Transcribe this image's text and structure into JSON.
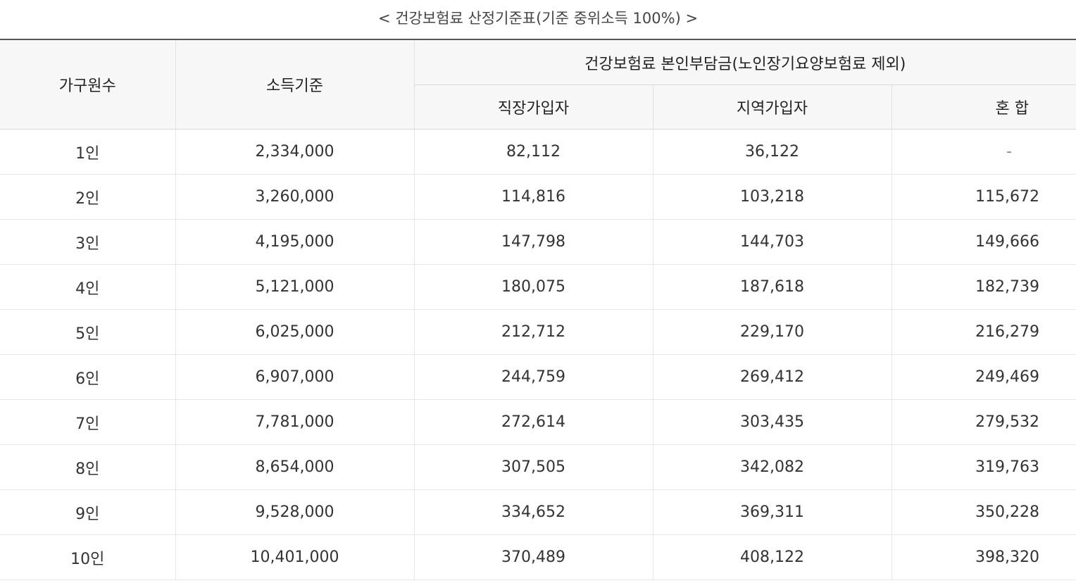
{
  "caption": "< 건강보험료 산정기준표(기준 중위소득 100%) >",
  "headers": {
    "household": "가구원수",
    "income": "소득기준",
    "premium_group": "건강보험료 본인부담금(노인장기요양보험료 제외)",
    "workplace": "직장가입자",
    "regional": "지역가입자",
    "mixed": "혼 합"
  },
  "rows": [
    {
      "household": "1인",
      "income": "2,334,000",
      "workplace": "82,112",
      "regional": "36,122",
      "mixed": "-"
    },
    {
      "household": "2인",
      "income": "3,260,000",
      "workplace": "114,816",
      "regional": "103,218",
      "mixed": "115,672"
    },
    {
      "household": "3인",
      "income": "4,195,000",
      "workplace": "147,798",
      "regional": "144,703",
      "mixed": "149,666"
    },
    {
      "household": "4인",
      "income": "5,121,000",
      "workplace": "180,075",
      "regional": "187,618",
      "mixed": "182,739"
    },
    {
      "household": "5인",
      "income": "6,025,000",
      "workplace": "212,712",
      "regional": "229,170",
      "mixed": "216,279"
    },
    {
      "household": "6인",
      "income": "6,907,000",
      "workplace": "244,759",
      "regional": "269,412",
      "mixed": "249,469"
    },
    {
      "household": "7인",
      "income": "7,781,000",
      "workplace": "272,614",
      "regional": "303,435",
      "mixed": "279,532"
    },
    {
      "household": "8인",
      "income": "8,654,000",
      "workplace": "307,505",
      "regional": "342,082",
      "mixed": "319,763"
    },
    {
      "household": "9인",
      "income": "9,528,000",
      "workplace": "334,652",
      "regional": "369,311",
      "mixed": "350,228"
    },
    {
      "household": "10인",
      "income": "10,401,000",
      "workplace": "370,489",
      "regional": "408,122",
      "mixed": "398,320"
    }
  ]
}
